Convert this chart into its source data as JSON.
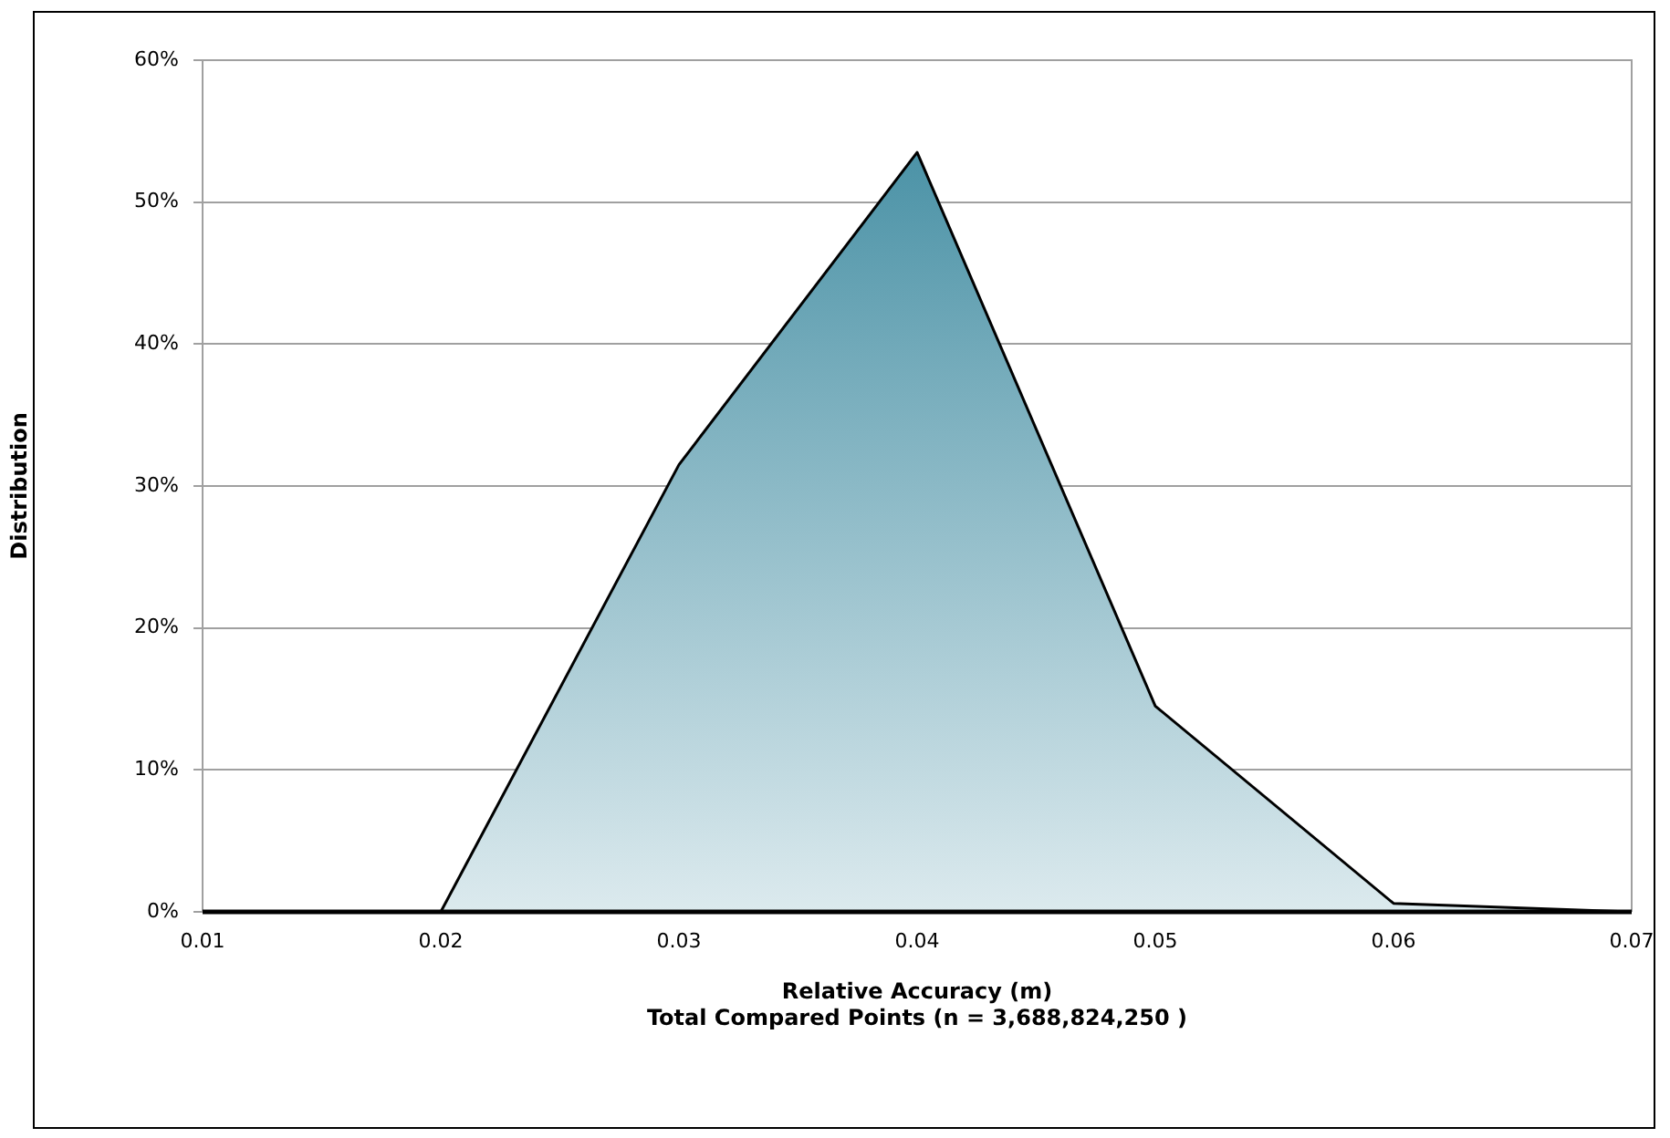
{
  "chart_data": {
    "type": "area",
    "xlabel": "Relative Accuracy (m)",
    "ylabel": "Distribution",
    "annotations": [
      "Total Compared Points (n = 3,688,824,250 )"
    ],
    "x": [
      0.01,
      0.02,
      0.03,
      0.04,
      0.05,
      0.06,
      0.07
    ],
    "series": [
      {
        "color": "#3a889e",
        "values": [
          0,
          0,
          31.5,
          53.5,
          14.5,
          0.6,
          0
        ]
      }
    ],
    "xlim": [
      0.01,
      0.07
    ],
    "xticks": [
      0.01,
      0.02,
      0.03,
      0.04,
      0.05,
      0.06,
      0.07
    ],
    "ylim": [
      0,
      60
    ],
    "yticks": [
      {
        "value": 0,
        "label": "0%"
      },
      {
        "value": 10,
        "label": "10%"
      },
      {
        "value": 20,
        "label": "20%"
      },
      {
        "value": 30,
        "label": "30%"
      },
      {
        "value": 40,
        "label": "40%"
      },
      {
        "value": 50,
        "label": "50%"
      },
      {
        "value": 60,
        "label": "60%"
      }
    ],
    "grid": "y",
    "legend": false,
    "marker": "none",
    "line_style": "solid"
  }
}
